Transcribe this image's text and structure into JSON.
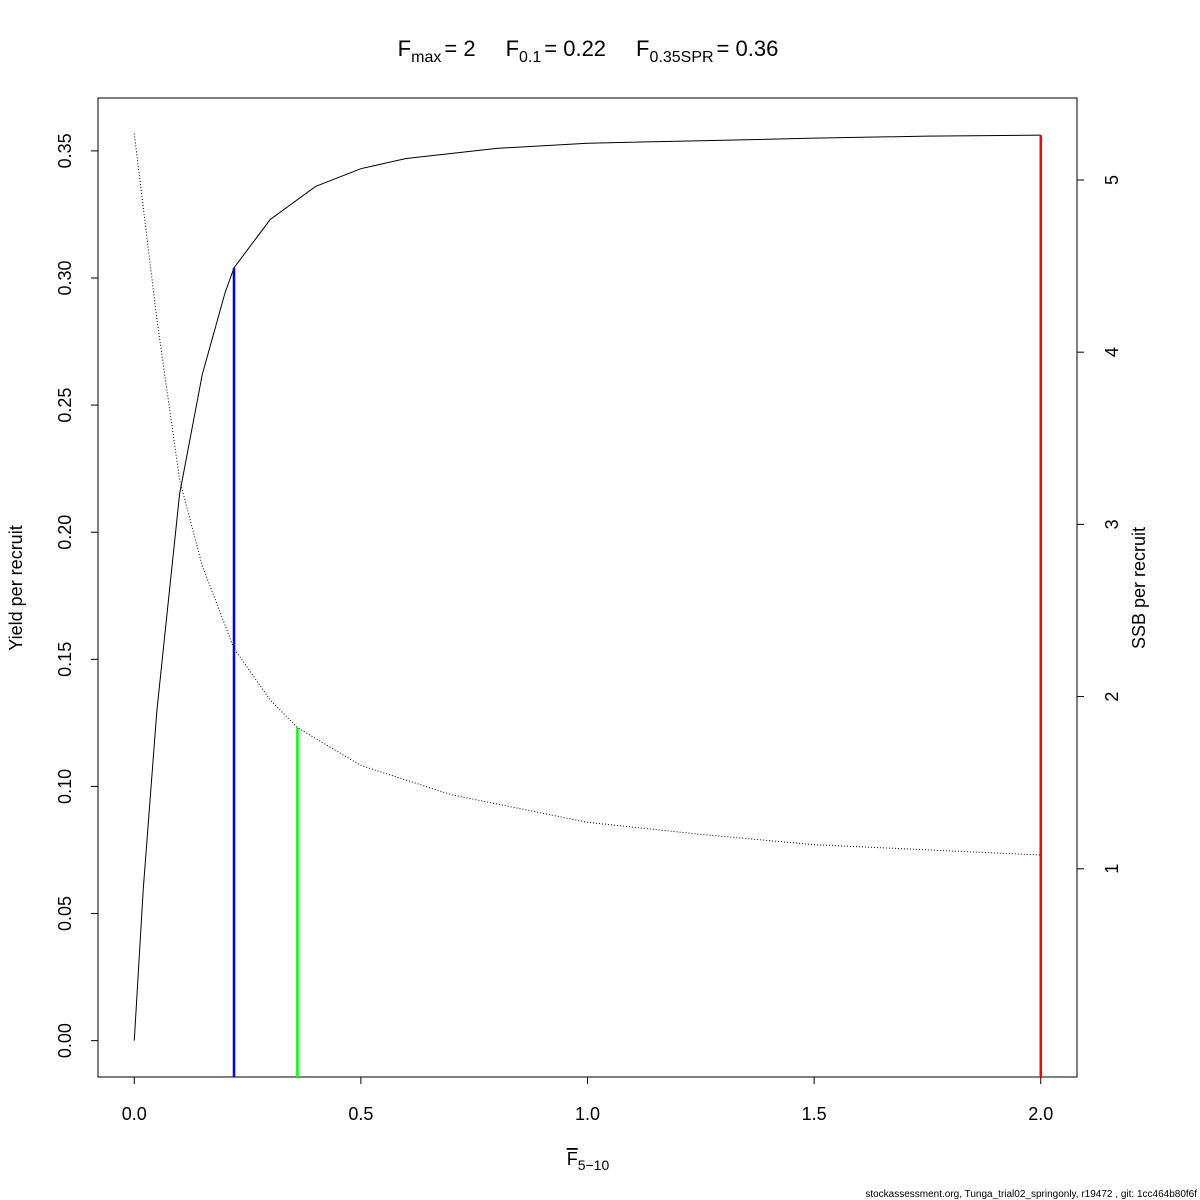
{
  "chart_data": {
    "type": "line",
    "title": [
      {
        "symbol": "F",
        "subscript": "max",
        "value": "= 2"
      },
      {
        "symbol": "F",
        "subscript": "0.1",
        "value": "= 0.22"
      },
      {
        "symbol": "F",
        "subscript": "0.35SPR",
        "value": "= 0.36"
      }
    ],
    "x_label": {
      "symbol": "F",
      "subscript": "5−10"
    },
    "y_label": "Yield per recruit",
    "y2_label": "SSB per recruit",
    "footer": "stockassessment.org, Tunga_trial02_springonly, r19472 , git: 1cc464b80f6f",
    "xlim": [
      -0.08,
      2.08
    ],
    "ylim": [
      -0.0143,
      0.3708
    ],
    "y2lim": [
      -0.209,
      5.476
    ],
    "xticks": [
      {
        "value": 0,
        "label": "0.0"
      },
      {
        "value": 0.5,
        "label": "0.5"
      },
      {
        "value": 1,
        "label": "1.0"
      },
      {
        "value": 1.5,
        "label": "1.5"
      },
      {
        "value": 2,
        "label": "2.0"
      }
    ],
    "yticks": [
      {
        "value": 0,
        "label": "0.00"
      },
      {
        "value": 0.05,
        "label": "0.05"
      },
      {
        "value": 0.1,
        "label": "0.10"
      },
      {
        "value": 0.15,
        "label": "0.15"
      },
      {
        "value": 0.2,
        "label": "0.20"
      },
      {
        "value": 0.25,
        "label": "0.25"
      },
      {
        "value": 0.3,
        "label": "0.30"
      },
      {
        "value": 0.35,
        "label": "0.35"
      }
    ],
    "y2ticks": [
      1,
      2,
      3,
      4,
      5
    ],
    "series": [
      {
        "name": "Yield per recruit",
        "color": "#000000",
        "line_style": "solid",
        "x": [
          0,
          0.02,
          0.05,
          0.1,
          0.15,
          0.2,
          0.22,
          0.3,
          0.4,
          0.5,
          0.6,
          0.8,
          1.0,
          1.25,
          1.5,
          1.75,
          2.0
        ],
        "values": [
          0,
          0.06,
          0.13,
          0.215,
          0.262,
          0.294,
          0.304,
          0.323,
          0.336,
          0.343,
          0.347,
          0.351,
          0.353,
          0.354,
          0.355,
          0.3558,
          0.3562
        ]
      },
      {
        "name": "SSB per recruit",
        "color": "#000000",
        "line_style": "dotted",
        "axis": "y2",
        "x": [
          0,
          0.05,
          0.1,
          0.15,
          0.22,
          0.3,
          0.36,
          0.5,
          0.7,
          1.0,
          1.25,
          1.5,
          1.75,
          2.0
        ],
        "values": [
          5.27,
          4.19,
          3.26,
          2.76,
          2.28,
          1.98,
          1.82,
          1.6,
          1.43,
          1.27,
          1.2,
          1.14,
          1.11,
          1.08
        ]
      }
    ],
    "reference_lines": [
      {
        "x": 0.22,
        "top": 0.304,
        "color": "#0000ff"
      },
      {
        "x": 0.36,
        "top": 1.82,
        "axis": "y2",
        "color": "#00ff00"
      },
      {
        "x": 2.0,
        "top": 0.3562,
        "color": "#ff0000"
      }
    ]
  }
}
